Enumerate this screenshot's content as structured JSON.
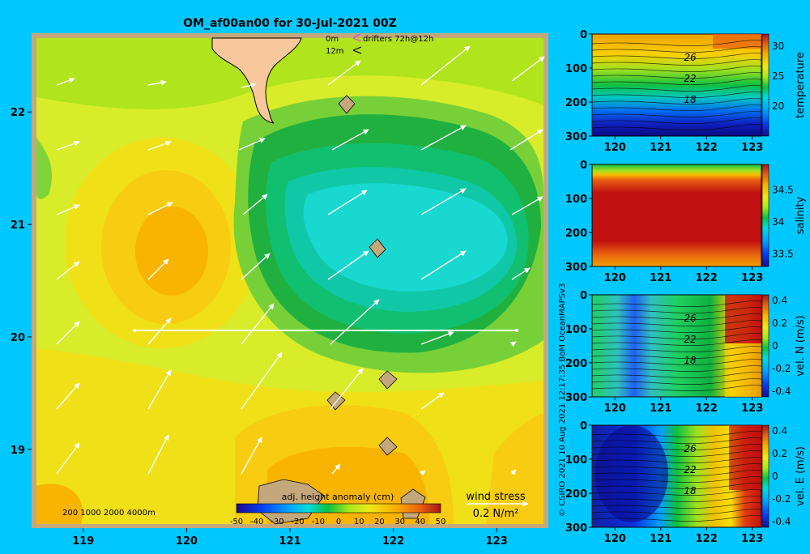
{
  "title": "OM_af00an00 for 30-Jul-2021 00Z",
  "credit": "© CSIRO 2021   10 Aug 2021 12:17:35 BoM OceanMAPSv3",
  "colors": {
    "background": "#00c8ff",
    "land": "#f8c89c",
    "land_edge": "#c4a87c",
    "arrow": "#ffffff",
    "drifter": "#e040e0"
  },
  "map": {
    "lon_ticks": [
      "119",
      "120",
      "121",
      "122",
      "123"
    ],
    "lat_ticks": [
      "19",
      "20",
      "21",
      "22"
    ],
    "lon_range": [
      118.5,
      123.5
    ],
    "lat_range": [
      18.3,
      22.7
    ],
    "legend_depth": [
      "0m",
      "12m"
    ],
    "legend_drifter": "drifters 72h@12h",
    "bathy_label": "200  1000  2000  4000m",
    "colorbar_label": "adj. height anomaly (cm)",
    "colorbar_ticks": [
      "-50",
      "-40",
      "-30",
      "-20",
      "-10",
      "0",
      "10",
      "20",
      "30",
      "40",
      "50"
    ],
    "wind_title": "wind stress",
    "wind_ref": "0.2 N/m²",
    "section_line": {
      "lat": 20,
      "lon_start": 119.5,
      "lon_end": 123.2
    }
  },
  "chart_data": [
    {
      "type": "heatmap",
      "title": "",
      "description_field": "sea surface height anomaly with wind stress vectors",
      "xlabel": "",
      "ylabel": "",
      "xlim": [
        118.5,
        123.5
      ],
      "ylim": [
        18.3,
        22.7
      ],
      "colorbar": {
        "label": "adj. height anomaly (cm)",
        "range": [
          -50,
          50
        ]
      },
      "features": [
        {
          "name": "warm eddy",
          "lon": 120.0,
          "lat": 20.6,
          "value_cm": 25
        },
        {
          "name": "cold eddy",
          "lon": 122.0,
          "lat": 20.9,
          "value_cm": -15
        }
      ]
    },
    {
      "type": "heatmap",
      "ylabel": "temperature",
      "xlim": [
        119.5,
        123.2
      ],
      "ylim": [
        300,
        0
      ],
      "x_ticks": [
        "120",
        "121",
        "122",
        "123"
      ],
      "y_ticks": [
        "0",
        "100",
        "200",
        "300"
      ],
      "colorbar_ticks": [
        "30",
        "25",
        "20"
      ],
      "colorbar_range": [
        15,
        32
      ],
      "contour_labels": [
        "26",
        "22",
        "18"
      ]
    },
    {
      "type": "heatmap",
      "ylabel": "salinity",
      "xlim": [
        119.5,
        123.2
      ],
      "ylim": [
        300,
        0
      ],
      "x_ticks": [
        "120",
        "121",
        "122",
        "123"
      ],
      "y_ticks": [
        "0",
        "100",
        "200",
        "300"
      ],
      "colorbar_ticks": [
        "34.5",
        "34",
        "33.5"
      ],
      "colorbar_range": [
        33.3,
        34.9
      ]
    },
    {
      "type": "heatmap",
      "ylabel": "vel. N (m/s)",
      "xlim": [
        119.5,
        123.2
      ],
      "ylim": [
        300,
        0
      ],
      "x_ticks": [
        "120",
        "121",
        "122",
        "123"
      ],
      "y_ticks": [
        "0",
        "100",
        "200",
        "300"
      ],
      "colorbar_ticks": [
        "0.4",
        "0.2",
        "0",
        "-0.2",
        "-0.4"
      ],
      "colorbar_range": [
        -0.45,
        0.45
      ],
      "contour_labels": [
        "26",
        "22",
        "18"
      ]
    },
    {
      "type": "heatmap",
      "ylabel": "vel. E (m/s)",
      "xlim": [
        119.5,
        123.2
      ],
      "ylim": [
        300,
        0
      ],
      "x_ticks": [
        "120",
        "121",
        "122",
        "123"
      ],
      "y_ticks": [
        "0",
        "100",
        "200",
        "300"
      ],
      "colorbar_ticks": [
        "0.4",
        "0.2",
        "0",
        "-0.2",
        "-0.4"
      ],
      "colorbar_range": [
        -0.45,
        0.45
      ],
      "contour_labels": [
        "26",
        "22",
        "18"
      ]
    }
  ]
}
